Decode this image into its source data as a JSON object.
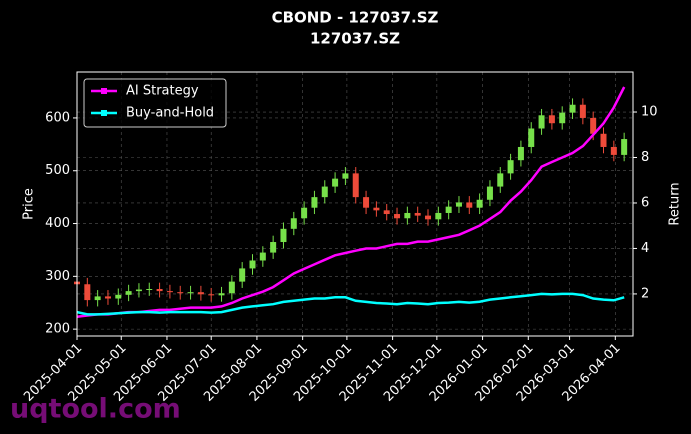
{
  "chart_data": {
    "type": "candlestick",
    "title": "CBOND - 127037.SZ",
    "subtitle": "127037.SZ",
    "ylabel": "Price",
    "y2label": "Return",
    "watermark": "uqtool.com",
    "x": [
      "2025-04-01",
      "2025-04-08",
      "2025-04-15",
      "2025-04-22",
      "2025-04-29",
      "2025-05-06",
      "2025-05-13",
      "2025-05-20",
      "2025-05-27",
      "2025-06-03",
      "2025-06-10",
      "2025-06-17",
      "2025-06-24",
      "2025-07-01",
      "2025-07-08",
      "2025-07-15",
      "2025-07-22",
      "2025-07-29",
      "2025-08-05",
      "2025-08-12",
      "2025-08-19",
      "2025-08-26",
      "2025-09-02",
      "2025-09-09",
      "2025-09-16",
      "2025-09-23",
      "2025-09-30",
      "2025-10-07",
      "2025-10-14",
      "2025-10-21",
      "2025-10-28",
      "2025-11-04",
      "2025-11-11",
      "2025-11-18",
      "2025-11-25",
      "2025-12-02",
      "2025-12-09",
      "2025-12-16",
      "2025-12-23",
      "2025-12-30",
      "2026-01-06",
      "2026-01-13",
      "2026-01-20",
      "2026-01-27",
      "2026-02-03",
      "2026-02-10",
      "2026-02-17",
      "2026-02-24",
      "2026-03-03",
      "2026-03-10",
      "2026-03-17",
      "2026-03-24",
      "2026-03-31",
      "2026-04-07"
    ],
    "open": [
      290,
      285,
      255,
      262,
      258,
      265,
      272,
      275,
      276,
      272,
      270,
      268,
      270,
      266,
      264,
      268,
      290,
      315,
      330,
      345,
      365,
      390,
      410,
      430,
      450,
      470,
      485,
      495,
      450,
      430,
      425,
      418,
      410,
      420,
      415,
      408,
      420,
      432,
      440,
      430,
      445,
      470,
      495,
      520,
      545,
      580,
      605,
      590,
      610,
      625,
      600,
      570,
      545,
      530
    ],
    "high": [
      302,
      297,
      274,
      274,
      277,
      284,
      287,
      288,
      288,
      284,
      282,
      282,
      282,
      278,
      280,
      302,
      327,
      342,
      357,
      377,
      402,
      422,
      442,
      462,
      482,
      497,
      507,
      507,
      462,
      442,
      437,
      430,
      432,
      432,
      427,
      432,
      444,
      452,
      452,
      457,
      482,
      507,
      532,
      557,
      592,
      617,
      617,
      622,
      637,
      637,
      612,
      582,
      557,
      572
    ],
    "low": [
      273,
      243,
      243,
      246,
      246,
      253,
      260,
      263,
      260,
      258,
      256,
      256,
      254,
      252,
      252,
      256,
      278,
      303,
      318,
      333,
      353,
      378,
      398,
      418,
      438,
      458,
      473,
      438,
      418,
      413,
      406,
      398,
      398,
      403,
      396,
      396,
      408,
      420,
      418,
      418,
      433,
      458,
      483,
      508,
      533,
      568,
      578,
      578,
      598,
      588,
      558,
      533,
      518,
      518
    ],
    "close": [
      285,
      255,
      262,
      258,
      265,
      272,
      275,
      276,
      272,
      270,
      268,
      270,
      266,
      264,
      268,
      290,
      315,
      330,
      345,
      365,
      390,
      410,
      430,
      450,
      470,
      485,
      495,
      450,
      430,
      425,
      418,
      410,
      420,
      415,
      408,
      420,
      432,
      440,
      430,
      445,
      470,
      495,
      520,
      545,
      580,
      605,
      590,
      610,
      625,
      600,
      570,
      545,
      530,
      560
    ],
    "up_color": "#77e04a",
    "down_color": "#ee4b3a",
    "series": [
      {
        "name": "AI Strategy",
        "color": "#ff00ff",
        "axis": "y2",
        "values": [
          1.0,
          1.05,
          1.1,
          1.1,
          1.15,
          1.2,
          1.2,
          1.25,
          1.3,
          1.3,
          1.35,
          1.4,
          1.4,
          1.4,
          1.45,
          1.6,
          1.8,
          1.95,
          2.1,
          2.3,
          2.6,
          2.9,
          3.1,
          3.3,
          3.5,
          3.7,
          3.8,
          3.9,
          4.0,
          4.0,
          4.1,
          4.2,
          4.2,
          4.3,
          4.3,
          4.4,
          4.5,
          4.6,
          4.8,
          5.0,
          5.3,
          5.6,
          6.1,
          6.5,
          7.0,
          7.6,
          7.8,
          8.0,
          8.2,
          8.5,
          9.0,
          9.5,
          10.2,
          11.1
        ]
      },
      {
        "name": "Buy-and-Hold",
        "color": "#00ffff",
        "axis": "y2",
        "values": [
          1.2,
          1.1,
          1.1,
          1.12,
          1.15,
          1.18,
          1.2,
          1.2,
          1.18,
          1.2,
          1.2,
          1.2,
          1.2,
          1.18,
          1.2,
          1.3,
          1.4,
          1.45,
          1.5,
          1.55,
          1.65,
          1.7,
          1.75,
          1.8,
          1.8,
          1.85,
          1.85,
          1.7,
          1.65,
          1.6,
          1.58,
          1.55,
          1.6,
          1.58,
          1.55,
          1.6,
          1.62,
          1.65,
          1.62,
          1.66,
          1.75,
          1.8,
          1.85,
          1.9,
          1.95,
          2.0,
          1.98,
          2.0,
          2.0,
          1.95,
          1.8,
          1.75,
          1.72,
          1.85
        ]
      }
    ],
    "xlim": [
      "2025-04-01",
      "2026-04-13"
    ],
    "xticks": [
      "2025-04-01",
      "2025-05-01",
      "2025-06-01",
      "2025-07-01",
      "2025-08-01",
      "2025-09-01",
      "2025-10-01",
      "2025-11-01",
      "2025-12-01",
      "2026-01-01",
      "2026-02-01",
      "2026-03-01",
      "2026-04-01"
    ],
    "ylim": [
      187,
      687
    ],
    "yticks": [
      200,
      300,
      400,
      500,
      600
    ],
    "y2lim": [
      0.15,
      11.76
    ],
    "y2ticks": [
      2,
      4,
      6,
      8,
      10
    ],
    "grid": true,
    "legend": "upper left"
  }
}
